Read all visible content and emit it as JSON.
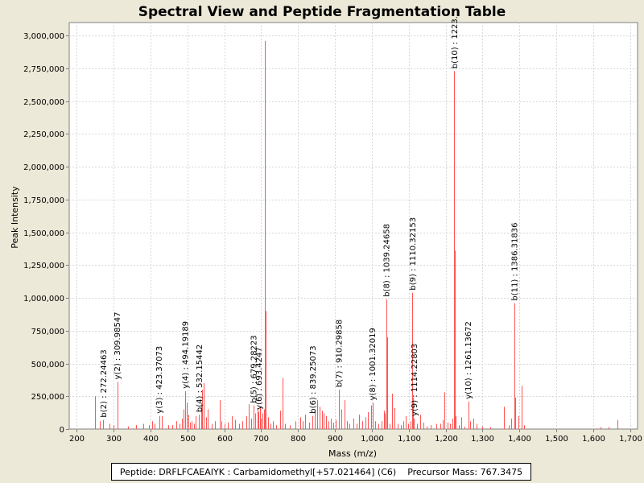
{
  "chart_data": {
    "type": "bar",
    "title": "Spectral View and Peptide Fragmentation Table",
    "xlabel": "Mass (m/z)",
    "ylabel": "Peak Intensity",
    "xlim": [
      180,
      1720
    ],
    "ylim": [
      0,
      3100000
    ],
    "xticks": [
      200,
      300,
      400,
      500,
      600,
      700,
      800,
      900,
      1000,
      1100,
      1200,
      1300,
      1400,
      1500,
      1600,
      1700
    ],
    "xtick_labels": [
      "200",
      "300",
      "400",
      "500",
      "600",
      "700",
      "800",
      "900",
      "1,000",
      "1,100",
      "1,200",
      "1,300",
      "1,400",
      "1,500",
      "1,600",
      "1,700"
    ],
    "yticks": [
      0,
      250000,
      500000,
      750000,
      1000000,
      1250000,
      1500000,
      1750000,
      2000000,
      2250000,
      2500000,
      2750000,
      3000000
    ],
    "ytick_labels": [
      "0",
      "250,000",
      "500,000",
      "750,000",
      "1,000,000",
      "1,250,000",
      "1,500,000",
      "1,750,000",
      "2,000,000",
      "2,250,000",
      "2,500,000",
      "2,750,000",
      "3,000,000"
    ],
    "bar_color": "#ff5555",
    "grid": true,
    "peaks": [
      {
        "mz": 250,
        "intensity": 250000
      },
      {
        "mz": 262,
        "intensity": 60000
      },
      {
        "mz": 272.2,
        "intensity": 70000
      },
      {
        "mz": 290,
        "intensity": 40000
      },
      {
        "mz": 300,
        "intensity": 30000
      },
      {
        "mz": 309.9,
        "intensity": 360000
      },
      {
        "mz": 340,
        "intensity": 20000
      },
      {
        "mz": 360,
        "intensity": 30000
      },
      {
        "mz": 380,
        "intensity": 40000
      },
      {
        "mz": 395,
        "intensity": 30000
      },
      {
        "mz": 405,
        "intensity": 60000
      },
      {
        "mz": 412,
        "intensity": 40000
      },
      {
        "mz": 423.4,
        "intensity": 100000
      },
      {
        "mz": 430,
        "intensity": 100000
      },
      {
        "mz": 448,
        "intensity": 30000
      },
      {
        "mz": 460,
        "intensity": 30000
      },
      {
        "mz": 470,
        "intensity": 60000
      },
      {
        "mz": 478,
        "intensity": 40000
      },
      {
        "mz": 485,
        "intensity": 80000
      },
      {
        "mz": 490,
        "intensity": 150000
      },
      {
        "mz": 494.2,
        "intensity": 290000
      },
      {
        "mz": 498,
        "intensity": 200000
      },
      {
        "mz": 502,
        "intensity": 110000
      },
      {
        "mz": 507,
        "intensity": 50000
      },
      {
        "mz": 512,
        "intensity": 60000
      },
      {
        "mz": 518,
        "intensity": 40000
      },
      {
        "mz": 523,
        "intensity": 100000
      },
      {
        "mz": 532.2,
        "intensity": 110000
      },
      {
        "mz": 537,
        "intensity": 200000
      },
      {
        "mz": 541,
        "intensity": 300000
      },
      {
        "mz": 545,
        "intensity": 350000
      },
      {
        "mz": 550,
        "intensity": 90000
      },
      {
        "mz": 555,
        "intensity": 150000
      },
      {
        "mz": 565,
        "intensity": 40000
      },
      {
        "mz": 575,
        "intensity": 60000
      },
      {
        "mz": 588,
        "intensity": 220000
      },
      {
        "mz": 592,
        "intensity": 60000
      },
      {
        "mz": 600,
        "intensity": 40000
      },
      {
        "mz": 610,
        "intensity": 50000
      },
      {
        "mz": 620,
        "intensity": 100000
      },
      {
        "mz": 630,
        "intensity": 70000
      },
      {
        "mz": 640,
        "intensity": 40000
      },
      {
        "mz": 650,
        "intensity": 60000
      },
      {
        "mz": 660,
        "intensity": 100000
      },
      {
        "mz": 666,
        "intensity": 190000
      },
      {
        "mz": 672,
        "intensity": 80000
      },
      {
        "mz": 679.3,
        "intensity": 180000
      },
      {
        "mz": 684,
        "intensity": 120000
      },
      {
        "mz": 690,
        "intensity": 160000
      },
      {
        "mz": 693.4,
        "intensity": 130000
      },
      {
        "mz": 696,
        "intensity": 170000
      },
      {
        "mz": 700,
        "intensity": 80000
      },
      {
        "mz": 703,
        "intensity": 120000
      },
      {
        "mz": 707,
        "intensity": 150000
      },
      {
        "mz": 711,
        "intensity": 2960000
      },
      {
        "mz": 712,
        "intensity": 900000
      },
      {
        "mz": 718,
        "intensity": 90000
      },
      {
        "mz": 725,
        "intensity": 40000
      },
      {
        "mz": 732,
        "intensity": 60000
      },
      {
        "mz": 740,
        "intensity": 30000
      },
      {
        "mz": 752,
        "intensity": 140000
      },
      {
        "mz": 758,
        "intensity": 390000
      },
      {
        "mz": 765,
        "intensity": 40000
      },
      {
        "mz": 778,
        "intensity": 30000
      },
      {
        "mz": 792,
        "intensity": 60000
      },
      {
        "mz": 805,
        "intensity": 90000
      },
      {
        "mz": 812,
        "intensity": 60000
      },
      {
        "mz": 820,
        "intensity": 110000
      },
      {
        "mz": 830,
        "intensity": 50000
      },
      {
        "mz": 839.3,
        "intensity": 100000
      },
      {
        "mz": 845,
        "intensity": 150000
      },
      {
        "mz": 852,
        "intensity": 220000
      },
      {
        "mz": 858,
        "intensity": 170000
      },
      {
        "mz": 864,
        "intensity": 140000
      },
      {
        "mz": 870,
        "intensity": 120000
      },
      {
        "mz": 876,
        "intensity": 100000
      },
      {
        "mz": 882,
        "intensity": 60000
      },
      {
        "mz": 888,
        "intensity": 80000
      },
      {
        "mz": 895,
        "intensity": 50000
      },
      {
        "mz": 903,
        "intensity": 70000
      },
      {
        "mz": 910.3,
        "intensity": 300000
      },
      {
        "mz": 918,
        "intensity": 150000
      },
      {
        "mz": 925,
        "intensity": 220000
      },
      {
        "mz": 933,
        "intensity": 60000
      },
      {
        "mz": 940,
        "intensity": 40000
      },
      {
        "mz": 950,
        "intensity": 80000
      },
      {
        "mz": 958,
        "intensity": 40000
      },
      {
        "mz": 965,
        "intensity": 110000
      },
      {
        "mz": 975,
        "intensity": 60000
      },
      {
        "mz": 983,
        "intensity": 90000
      },
      {
        "mz": 990,
        "intensity": 130000
      },
      {
        "mz": 997,
        "intensity": 180000
      },
      {
        "mz": 1001.3,
        "intensity": 200000
      },
      {
        "mz": 1008,
        "intensity": 60000
      },
      {
        "mz": 1018,
        "intensity": 40000
      },
      {
        "mz": 1026,
        "intensity": 60000
      },
      {
        "mz": 1032,
        "intensity": 140000
      },
      {
        "mz": 1036,
        "intensity": 120000
      },
      {
        "mz": 1039.2,
        "intensity": 990000
      },
      {
        "mz": 1042,
        "intensity": 700000
      },
      {
        "mz": 1048,
        "intensity": 40000
      },
      {
        "mz": 1055,
        "intensity": 270000
      },
      {
        "mz": 1062,
        "intensity": 160000
      },
      {
        "mz": 1070,
        "intensity": 40000
      },
      {
        "mz": 1078,
        "intensity": 30000
      },
      {
        "mz": 1085,
        "intensity": 60000
      },
      {
        "mz": 1092,
        "intensity": 100000
      },
      {
        "mz": 1098,
        "intensity": 40000
      },
      {
        "mz": 1104,
        "intensity": 60000
      },
      {
        "mz": 1110.3,
        "intensity": 1040000
      },
      {
        "mz": 1112,
        "intensity": 240000
      },
      {
        "mz": 1114.2,
        "intensity": 80000
      },
      {
        "mz": 1122,
        "intensity": 40000
      },
      {
        "mz": 1130,
        "intensity": 110000
      },
      {
        "mz": 1140,
        "intensity": 50000
      },
      {
        "mz": 1148,
        "intensity": 20000
      },
      {
        "mz": 1160,
        "intensity": 30000
      },
      {
        "mz": 1175,
        "intensity": 40000
      },
      {
        "mz": 1185,
        "intensity": 40000
      },
      {
        "mz": 1193,
        "intensity": 70000
      },
      {
        "mz": 1197,
        "intensity": 280000
      },
      {
        "mz": 1205,
        "intensity": 50000
      },
      {
        "mz": 1212,
        "intensity": 40000
      },
      {
        "mz": 1218,
        "intensity": 80000
      },
      {
        "mz": 1223.4,
        "intensity": 2730000
      },
      {
        "mz": 1224.5,
        "intensity": 1360000
      },
      {
        "mz": 1228,
        "intensity": 100000
      },
      {
        "mz": 1235,
        "intensity": 30000
      },
      {
        "mz": 1242,
        "intensity": 90000
      },
      {
        "mz": 1250,
        "intensity": 20000
      },
      {
        "mz": 1261.1,
        "intensity": 210000
      },
      {
        "mz": 1266,
        "intensity": 60000
      },
      {
        "mz": 1275,
        "intensity": 80000
      },
      {
        "mz": 1283,
        "intensity": 40000
      },
      {
        "mz": 1300,
        "intensity": 20000
      },
      {
        "mz": 1320,
        "intensity": 15000
      },
      {
        "mz": 1358,
        "intensity": 170000
      },
      {
        "mz": 1370,
        "intensity": 30000
      },
      {
        "mz": 1378,
        "intensity": 80000
      },
      {
        "mz": 1386.3,
        "intensity": 960000
      },
      {
        "mz": 1389,
        "intensity": 240000
      },
      {
        "mz": 1397,
        "intensity": 100000
      },
      {
        "mz": 1405,
        "intensity": 330000
      },
      {
        "mz": 1412,
        "intensity": 30000
      },
      {
        "mz": 1620,
        "intensity": 15000
      },
      {
        "mz": 1642,
        "intensity": 15000
      },
      {
        "mz": 1665,
        "intensity": 70000
      }
    ],
    "annotations": [
      {
        "label": "b(2) : 272.24463",
        "mz": 272.2,
        "intensity": 70000
      },
      {
        "label": "y(2) : 309.98547",
        "mz": 309.9,
        "intensity": 360000
      },
      {
        "label": "y(3) : 423.37073",
        "mz": 423.4,
        "intensity": 100000
      },
      {
        "label": "y(4) : 494.19189",
        "mz": 494.2,
        "intensity": 290000
      },
      {
        "label": "b(4) : 532.15442",
        "mz": 532.2,
        "intensity": 110000
      },
      {
        "label": "b(5) : 679.28223",
        "mz": 679.3,
        "intensity": 180000
      },
      {
        "label": "y(6) : 693.4247",
        "mz": 693.4,
        "intensity": 130000
      },
      {
        "label": "b(6) : 839.25073",
        "mz": 839.3,
        "intensity": 100000
      },
      {
        "label": "b(7) : 910.29858",
        "mz": 910.3,
        "intensity": 300000
      },
      {
        "label": "y(8) : 1001.32019",
        "mz": 1001.3,
        "intensity": 200000
      },
      {
        "label": "b(8) : 1039.24658",
        "mz": 1039.2,
        "intensity": 990000
      },
      {
        "label": "b(9) : 1110.32153",
        "mz": 1110.3,
        "intensity": 1040000
      },
      {
        "label": "y(9) : 1114.22803",
        "mz": 1114.2,
        "intensity": 80000
      },
      {
        "label": "b(10) : 1223.",
        "mz": 1223.4,
        "intensity": 2730000
      },
      {
        "label": "y(10) : 1261.13672",
        "mz": 1261.1,
        "intensity": 210000
      },
      {
        "label": "b(11) : 1386.31836",
        "mz": 1386.3,
        "intensity": 960000
      }
    ]
  },
  "footer": {
    "peptide": "Peptide: DRFLFCAEAIYK : Carbamidomethyl[+57.021464] (C6)",
    "precursor": "Precursor Mass: 767.3475"
  }
}
